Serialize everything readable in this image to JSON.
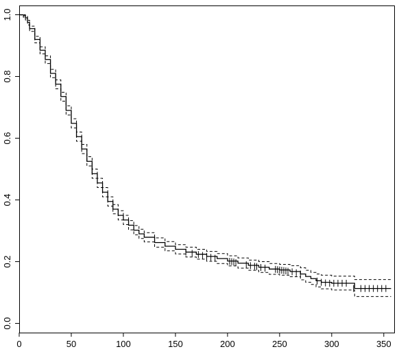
{
  "chart_data": {
    "type": "line",
    "title": "",
    "xlabel": "",
    "ylabel": "",
    "xlim": [
      0,
      360
    ],
    "ylim": [
      -0.03,
      1.03
    ],
    "x_ticks": [
      {
        "value": 0,
        "label": "0"
      },
      {
        "value": 50,
        "label": "50"
      },
      {
        "value": 100,
        "label": "100"
      },
      {
        "value": 150,
        "label": "150"
      },
      {
        "value": 200,
        "label": "200"
      },
      {
        "value": 250,
        "label": "250"
      },
      {
        "value": 300,
        "label": "300"
      },
      {
        "value": 350,
        "label": "350"
      }
    ],
    "y_ticks": [
      {
        "value": 0.0,
        "label": "0.0"
      },
      {
        "value": 0.2,
        "label": "0.2"
      },
      {
        "value": 0.4,
        "label": "0.4"
      },
      {
        "value": 0.6,
        "label": "0.6"
      },
      {
        "value": 0.8,
        "label": "0.8"
      },
      {
        "value": 1.0,
        "label": "1.0"
      }
    ],
    "grid": false,
    "series": [
      {
        "role": "estimate",
        "style": "solid",
        "color": "#000000",
        "points": [
          [
            0,
            1.0
          ],
          [
            2,
            1.0
          ],
          [
            4,
            0.997
          ],
          [
            6,
            0.99
          ],
          [
            8,
            0.975
          ],
          [
            10,
            0.955
          ],
          [
            15,
            0.92
          ],
          [
            20,
            0.885
          ],
          [
            25,
            0.855
          ],
          [
            30,
            0.81
          ],
          [
            35,
            0.775
          ],
          [
            40,
            0.735
          ],
          [
            45,
            0.69
          ],
          [
            50,
            0.648
          ],
          [
            55,
            0.605
          ],
          [
            60,
            0.565
          ],
          [
            65,
            0.525
          ],
          [
            70,
            0.485
          ],
          [
            75,
            0.455
          ],
          [
            80,
            0.425
          ],
          [
            85,
            0.395
          ],
          [
            90,
            0.37
          ],
          [
            95,
            0.35
          ],
          [
            100,
            0.335
          ],
          [
            105,
            0.318
          ],
          [
            110,
            0.302
          ],
          [
            115,
            0.29
          ],
          [
            120,
            0.279
          ],
          [
            130,
            0.262
          ],
          [
            140,
            0.25
          ],
          [
            150,
            0.24
          ],
          [
            160,
            0.231
          ],
          [
            170,
            0.224
          ],
          [
            180,
            0.217
          ],
          [
            190,
            0.21
          ],
          [
            200,
            0.202
          ],
          [
            210,
            0.195
          ],
          [
            220,
            0.188
          ],
          [
            230,
            0.182
          ],
          [
            240,
            0.176
          ],
          [
            250,
            0.173
          ],
          [
            260,
            0.168
          ],
          [
            270,
            0.16
          ],
          [
            275,
            0.152
          ],
          [
            280,
            0.145
          ],
          [
            285,
            0.138
          ],
          [
            290,
            0.133
          ],
          [
            300,
            0.13
          ],
          [
            310,
            0.13
          ],
          [
            315,
            0.13
          ],
          [
            320,
            0.13
          ],
          [
            322,
            0.113
          ],
          [
            330,
            0.113
          ],
          [
            340,
            0.113
          ],
          [
            350,
            0.113
          ],
          [
            357,
            0.113
          ]
        ]
      },
      {
        "role": "upper-ci",
        "style": "dashed",
        "color": "#000000",
        "points": [
          [
            0,
            1.0
          ],
          [
            2,
            1.0
          ],
          [
            4,
            1.0
          ],
          [
            6,
            0.995
          ],
          [
            8,
            0.982
          ],
          [
            10,
            0.963
          ],
          [
            15,
            0.93
          ],
          [
            20,
            0.896
          ],
          [
            25,
            0.867
          ],
          [
            30,
            0.823
          ],
          [
            35,
            0.789
          ],
          [
            40,
            0.749
          ],
          [
            45,
            0.705
          ],
          [
            50,
            0.663
          ],
          [
            55,
            0.62
          ],
          [
            60,
            0.58
          ],
          [
            65,
            0.54
          ],
          [
            70,
            0.5
          ],
          [
            75,
            0.47
          ],
          [
            80,
            0.44
          ],
          [
            85,
            0.41
          ],
          [
            90,
            0.385
          ],
          [
            95,
            0.365
          ],
          [
            100,
            0.35
          ],
          [
            105,
            0.333
          ],
          [
            110,
            0.317
          ],
          [
            115,
            0.305
          ],
          [
            120,
            0.294
          ],
          [
            130,
            0.277
          ],
          [
            140,
            0.265
          ],
          [
            150,
            0.255
          ],
          [
            160,
            0.247
          ],
          [
            170,
            0.24
          ],
          [
            180,
            0.233
          ],
          [
            190,
            0.226
          ],
          [
            200,
            0.219
          ],
          [
            210,
            0.212
          ],
          [
            220,
            0.205
          ],
          [
            230,
            0.2
          ],
          [
            240,
            0.194
          ],
          [
            250,
            0.191
          ],
          [
            260,
            0.187
          ],
          [
            270,
            0.18
          ],
          [
            275,
            0.172
          ],
          [
            280,
            0.165
          ],
          [
            285,
            0.16
          ],
          [
            290,
            0.156
          ],
          [
            300,
            0.153
          ],
          [
            310,
            0.153
          ],
          [
            315,
            0.153
          ],
          [
            320,
            0.153
          ],
          [
            322,
            0.142
          ],
          [
            330,
            0.142
          ],
          [
            340,
            0.142
          ],
          [
            350,
            0.142
          ],
          [
            357,
            0.142
          ]
        ]
      },
      {
        "role": "lower-ci",
        "style": "dashed",
        "color": "#000000",
        "points": [
          [
            0,
            1.0
          ],
          [
            2,
            0.998
          ],
          [
            4,
            0.992
          ],
          [
            6,
            0.983
          ],
          [
            8,
            0.967
          ],
          [
            10,
            0.946
          ],
          [
            15,
            0.909
          ],
          [
            20,
            0.873
          ],
          [
            25,
            0.842
          ],
          [
            30,
            0.796
          ],
          [
            35,
            0.76
          ],
          [
            40,
            0.72
          ],
          [
            45,
            0.675
          ],
          [
            50,
            0.633
          ],
          [
            55,
            0.59
          ],
          [
            60,
            0.55
          ],
          [
            65,
            0.51
          ],
          [
            70,
            0.47
          ],
          [
            75,
            0.44
          ],
          [
            80,
            0.41
          ],
          [
            85,
            0.38
          ],
          [
            90,
            0.355
          ],
          [
            95,
            0.335
          ],
          [
            100,
            0.32
          ],
          [
            105,
            0.303
          ],
          [
            110,
            0.287
          ],
          [
            115,
            0.275
          ],
          [
            120,
            0.264
          ],
          [
            130,
            0.247
          ],
          [
            140,
            0.235
          ],
          [
            150,
            0.225
          ],
          [
            160,
            0.215
          ],
          [
            170,
            0.208
          ],
          [
            180,
            0.201
          ],
          [
            190,
            0.194
          ],
          [
            200,
            0.186
          ],
          [
            210,
            0.179
          ],
          [
            220,
            0.172
          ],
          [
            230,
            0.165
          ],
          [
            240,
            0.159
          ],
          [
            250,
            0.156
          ],
          [
            260,
            0.151
          ],
          [
            270,
            0.141
          ],
          [
            275,
            0.133
          ],
          [
            280,
            0.126
          ],
          [
            285,
            0.118
          ],
          [
            290,
            0.112
          ],
          [
            300,
            0.108
          ],
          [
            310,
            0.108
          ],
          [
            315,
            0.108
          ],
          [
            320,
            0.108
          ],
          [
            322,
            0.087
          ],
          [
            330,
            0.087
          ],
          [
            340,
            0.087
          ],
          [
            350,
            0.087
          ],
          [
            357,
            0.087
          ]
        ]
      }
    ],
    "censor_marks": [
      [
        160,
        0.231
      ],
      [
        166,
        0.227
      ],
      [
        172,
        0.223
      ],
      [
        176,
        0.22
      ],
      [
        180,
        0.217
      ],
      [
        184,
        0.214
      ],
      [
        188,
        0.211
      ],
      [
        202,
        0.201
      ],
      [
        204,
        0.2
      ],
      [
        206,
        0.199
      ],
      [
        208,
        0.197
      ],
      [
        218,
        0.19
      ],
      [
        222,
        0.187
      ],
      [
        226,
        0.185
      ],
      [
        228,
        0.184
      ],
      [
        232,
        0.181
      ],
      [
        236,
        0.179
      ],
      [
        246,
        0.175
      ],
      [
        248,
        0.174
      ],
      [
        250,
        0.173
      ],
      [
        252,
        0.172
      ],
      [
        254,
        0.171
      ],
      [
        256,
        0.17
      ],
      [
        258,
        0.169
      ],
      [
        262,
        0.167
      ],
      [
        266,
        0.164
      ],
      [
        270,
        0.16
      ],
      [
        286,
        0.137
      ],
      [
        290,
        0.133
      ],
      [
        294,
        0.131
      ],
      [
        298,
        0.13
      ],
      [
        302,
        0.13
      ],
      [
        306,
        0.13
      ],
      [
        310,
        0.13
      ],
      [
        314,
        0.13
      ],
      [
        321,
        0.113
      ],
      [
        328,
        0.113
      ],
      [
        332,
        0.113
      ],
      [
        336,
        0.113
      ],
      [
        340,
        0.113
      ],
      [
        344,
        0.113
      ],
      [
        348,
        0.113
      ],
      [
        352,
        0.113
      ]
    ]
  }
}
